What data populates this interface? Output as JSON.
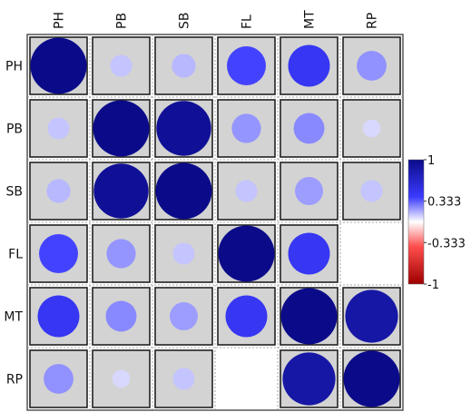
{
  "chart_data": {
    "type": "heatmap",
    "variables": [
      "PH",
      "PB",
      "SB",
      "FL",
      "MT",
      "RP"
    ],
    "matrix": [
      [
        1.0,
        0.15,
        0.18,
        0.48,
        0.55,
        0.28
      ],
      [
        0.15,
        1.0,
        0.95,
        0.27,
        0.3,
        0.1
      ],
      [
        0.18,
        0.95,
        1.0,
        0.15,
        0.25,
        0.15
      ],
      [
        0.48,
        0.27,
        0.15,
        1.0,
        0.55,
        null
      ],
      [
        0.55,
        0.3,
        0.25,
        0.55,
        1.0,
        0.88
      ],
      [
        0.28,
        0.1,
        0.15,
        null,
        0.88,
        1.0
      ]
    ],
    "legend": {
      "ticks": [
        "1",
        "0.333",
        "-0.333",
        "-1"
      ],
      "tick_values": [
        1,
        0.333,
        -0.333,
        -1
      ],
      "range": [
        -1,
        1
      ],
      "colors": {
        "negative": "#b2182b",
        "mid": "#ffffff",
        "positive": "#0b0b8a"
      }
    },
    "cell_background": "#d3d3d3",
    "grid": true
  }
}
